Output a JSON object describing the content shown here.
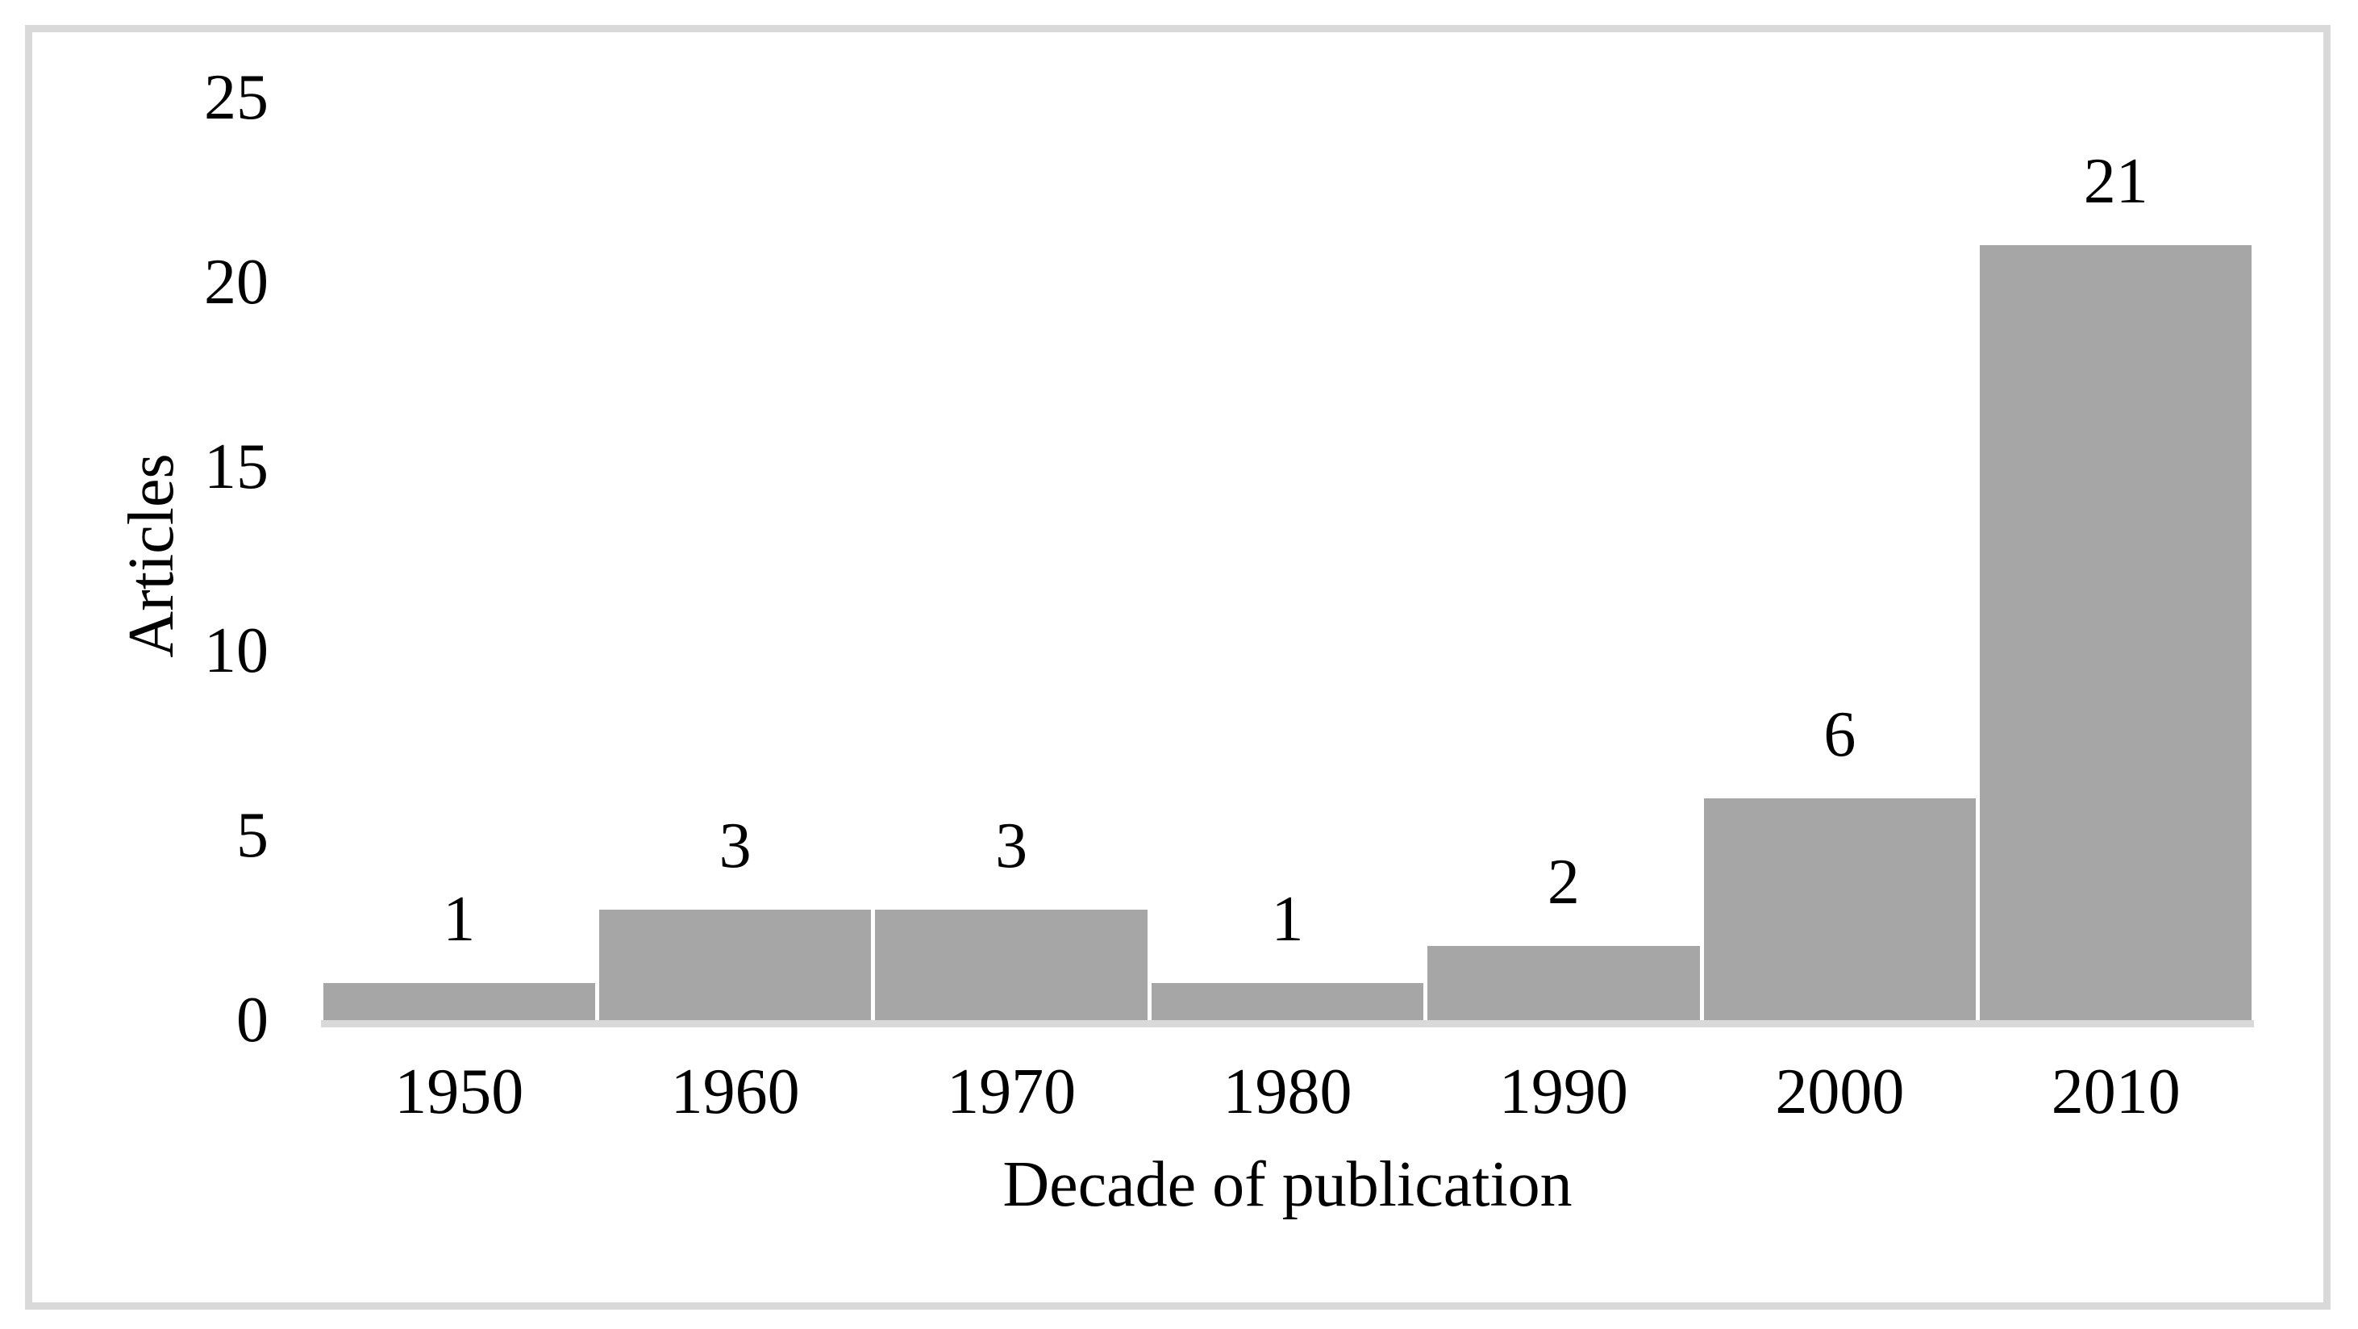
{
  "chart_data": {
    "type": "bar",
    "title": "",
    "categories": [
      "1950",
      "1960",
      "1970",
      "1980",
      "1990",
      "2000",
      "2010"
    ],
    "values": [
      1,
      3,
      3,
      1,
      2,
      6,
      21
    ],
    "data_labels": [
      "1",
      "3",
      "3",
      "1",
      "2",
      "6",
      "21"
    ],
    "xlabel": "Decade of publication",
    "ylabel": "Articles",
    "ylim": [
      0,
      25
    ],
    "yticks": [
      0,
      5,
      10,
      15,
      20,
      25
    ],
    "grid": false,
    "legend": false,
    "bar_color": "#a6a6a6",
    "axis_line_color": "#d9d9d9",
    "frame_border_color": "#d9d9d9",
    "text_color": "#000000",
    "background_color": "#ffffff"
  }
}
